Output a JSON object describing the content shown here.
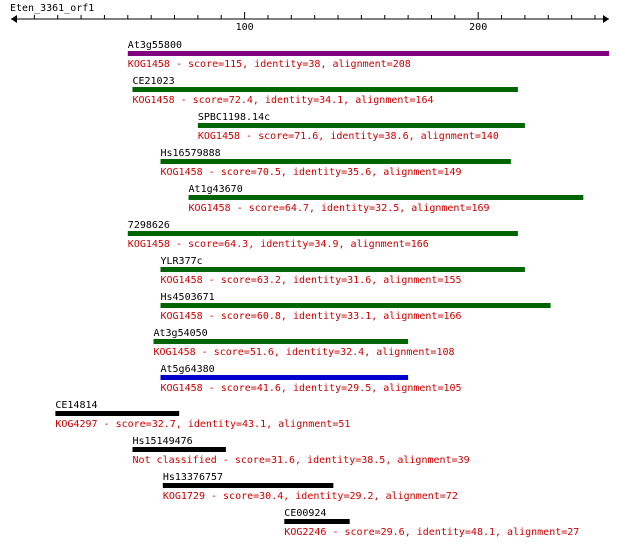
{
  "query": {
    "name": "Eten_3361_orf1",
    "length": 256,
    "ticks_labeled": [
      100,
      200
    ],
    "ticks_minor": [
      10,
      20,
      30,
      40,
      50,
      60,
      70,
      80,
      90,
      110,
      120,
      130,
      140,
      150,
      160,
      170,
      180,
      190,
      210,
      220,
      230,
      240,
      250
    ]
  },
  "hits": [
    {
      "name": "At3g55800",
      "start": 50,
      "end": 256,
      "color": "#800080",
      "desc": "KOG1458 - score=115, identity=38, alignment=208"
    },
    {
      "name": "CE21023",
      "start": 52,
      "end": 217,
      "color": "#006400",
      "desc": "KOG1458 - score=72.4, identity=34.1, alignment=164"
    },
    {
      "name": "SPBC1198.14c",
      "start": 80,
      "end": 220,
      "color": "#006400",
      "desc": "KOG1458 - score=71.6, identity=38.6, alignment=140"
    },
    {
      "name": "Hs16579888",
      "start": 64,
      "end": 214,
      "color": "#006400",
      "desc": "KOG1458 - score=70.5, identity=35.6, alignment=149"
    },
    {
      "name": "At1g43670",
      "start": 76,
      "end": 245,
      "color": "#006400",
      "desc": "KOG1458 - score=64.7, identity=32.5, alignment=169"
    },
    {
      "name": "7298626",
      "start": 50,
      "end": 217,
      "color": "#006400",
      "desc": "KOG1458 - score=64.3, identity=34.9, alignment=166"
    },
    {
      "name": "YLR377c",
      "start": 64,
      "end": 220,
      "color": "#006400",
      "desc": "KOG1458 - score=63.2, identity=31.6, alignment=155"
    },
    {
      "name": "Hs4503671",
      "start": 64,
      "end": 231,
      "color": "#006400",
      "desc": "KOG1458 - score=60.8, identity=33.1, alignment=166"
    },
    {
      "name": "At3g54050",
      "start": 61,
      "end": 170,
      "color": "#006400",
      "desc": "KOG1458 - score=51.6, identity=32.4, alignment=108"
    },
    {
      "name": "At5g64380",
      "start": 64,
      "end": 170,
      "color": "#0000cc",
      "desc": "KOG1458 - score=41.6, identity=29.5, alignment=105"
    },
    {
      "name": "CE14814",
      "start": 19,
      "end": 72,
      "color": "#000000",
      "desc": "KOG4297 - score=32.7, identity=43.1, alignment=51"
    },
    {
      "name": "Hs15149476",
      "start": 52,
      "end": 92,
      "color": "#000000",
      "desc": "Not classified - score=31.6, identity=38.5, alignment=39"
    },
    {
      "name": "Hs13376757",
      "start": 65,
      "end": 138,
      "color": "#000000",
      "desc": "KOG1729 - score=30.4, identity=29.2, alignment=72"
    },
    {
      "name": "CE00924",
      "start": 117,
      "end": 145,
      "color": "#000000",
      "desc": "KOG2246 - score=29.6, identity=48.1, alignment=27"
    }
  ]
}
